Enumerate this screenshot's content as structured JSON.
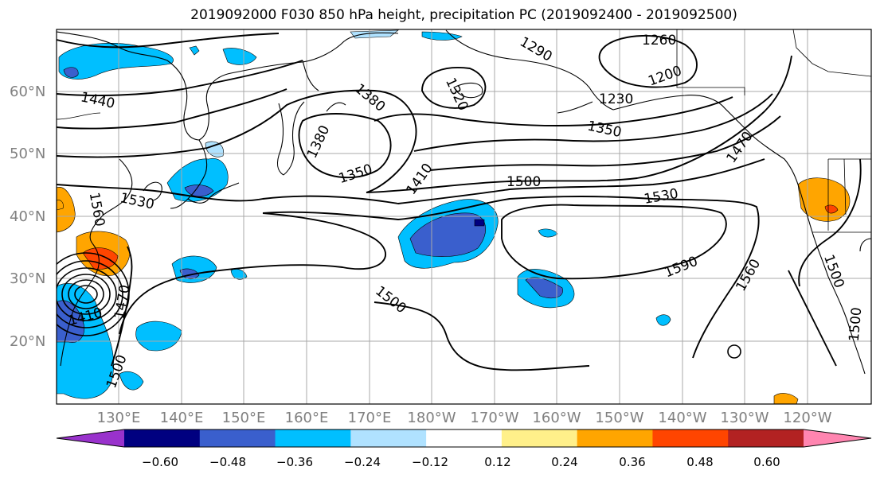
{
  "title": "2019092000 F030 850 hPa height, precipitation PC (2019092400 - 2019092500)",
  "lat_labels": [
    "60°N",
    "50°N",
    "40°N",
    "30°N",
    "20°N"
  ],
  "lon_labels": [
    "130°E",
    "140°E",
    "150°E",
    "160°E",
    "170°E",
    "180°W",
    "170°W",
    "160°W",
    "150°W",
    "140°W",
    "130°W",
    "120°W"
  ],
  "contour_labels": [
    "1260",
    "1290",
    "1200",
    "1230",
    "1320",
    "1380",
    "1350",
    "1440",
    "1380",
    "1350",
    "1410",
    "1500",
    "1530",
    "1530",
    "1560",
    "1470",
    "1590",
    "1560",
    "1500",
    "1500",
    "1410",
    "1470",
    "1500",
    "1500",
    "1500"
  ],
  "colorbar": {
    "colors": [
      "#9932cc",
      "#000080",
      "#3a5fcd",
      "#00bfff",
      "#b0e2ff",
      "#ffffff",
      "#fff08a",
      "#ffa500",
      "#ff4500",
      "#b22222",
      "#ff85b0"
    ],
    "tick_labels": [
      "−0.60",
      "−0.48",
      "−0.36",
      "−0.24",
      "−0.12",
      "0.12",
      "0.24",
      "0.36",
      "0.48",
      "0.60"
    ]
  }
}
